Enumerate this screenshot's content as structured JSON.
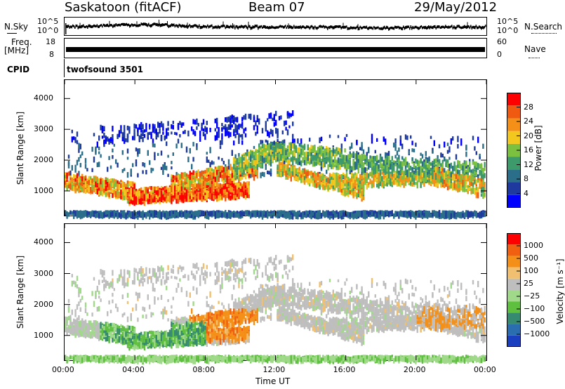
{
  "header": {
    "station": "Saskatoon (fitACF)",
    "beam": "Beam 07",
    "date": "29/May/2012"
  },
  "top_panels": {
    "nsky_label": "N.Sky",
    "nsearch_label": "N.Search",
    "freq_label_line1": "Freq.",
    "freq_label_line2": "[MHz]",
    "nave_label": "Nave",
    "cpid_label": "CPID",
    "cpid_value": "twofsound 3501",
    "noise_left_ticks": [
      "10^5",
      "10^0"
    ],
    "noise_right_ticks": [
      "10^5",
      "10^0"
    ],
    "freq_left_ticks": [
      "18",
      "8"
    ],
    "freq_right_ticks": [
      "60",
      "0"
    ]
  },
  "chart_data": [
    {
      "type": "heatmap",
      "panel": "power",
      "ylabel": "Slant Range [km]",
      "ylim": [
        200,
        4600
      ],
      "yticks": [
        1000,
        2000,
        3000,
        4000
      ],
      "xlim": [
        0,
        24
      ],
      "colorbar": {
        "label": "Power [dB]",
        "ticks": [
          "28",
          "24",
          "20",
          "16",
          "12",
          "8",
          "4"
        ],
        "colors": [
          "#0000ff",
          "#1e3a9e",
          "#2a6e8a",
          "#3d9a6a",
          "#7cc040",
          "#f2c81e",
          "#f49018",
          "#f05a10",
          "#ff0000"
        ]
      }
    },
    {
      "type": "heatmap",
      "panel": "velocity",
      "ylabel": "Slant Range [km]",
      "ylim": [
        200,
        4600
      ],
      "yticks": [
        1000,
        2000,
        3000,
        4000
      ],
      "xlim": [
        0,
        24
      ],
      "xlabel": "Time UT",
      "xticks": [
        "00:00",
        "04:00",
        "08:00",
        "12:00",
        "16:00",
        "20:00",
        "00:00"
      ],
      "colorbar": {
        "label": "Velocity [m s⁻¹]",
        "ticks": [
          "1000",
          "500",
          "100",
          "25",
          "−25",
          "−100",
          "−500",
          "−1000"
        ],
        "colors": [
          "#1a3fbf",
          "#2a6eb0",
          "#358a70",
          "#5fc040",
          "#a0d98a",
          "#bebebe",
          "#f0c070",
          "#f49018",
          "#f06010",
          "#ff0000"
        ]
      }
    }
  ]
}
